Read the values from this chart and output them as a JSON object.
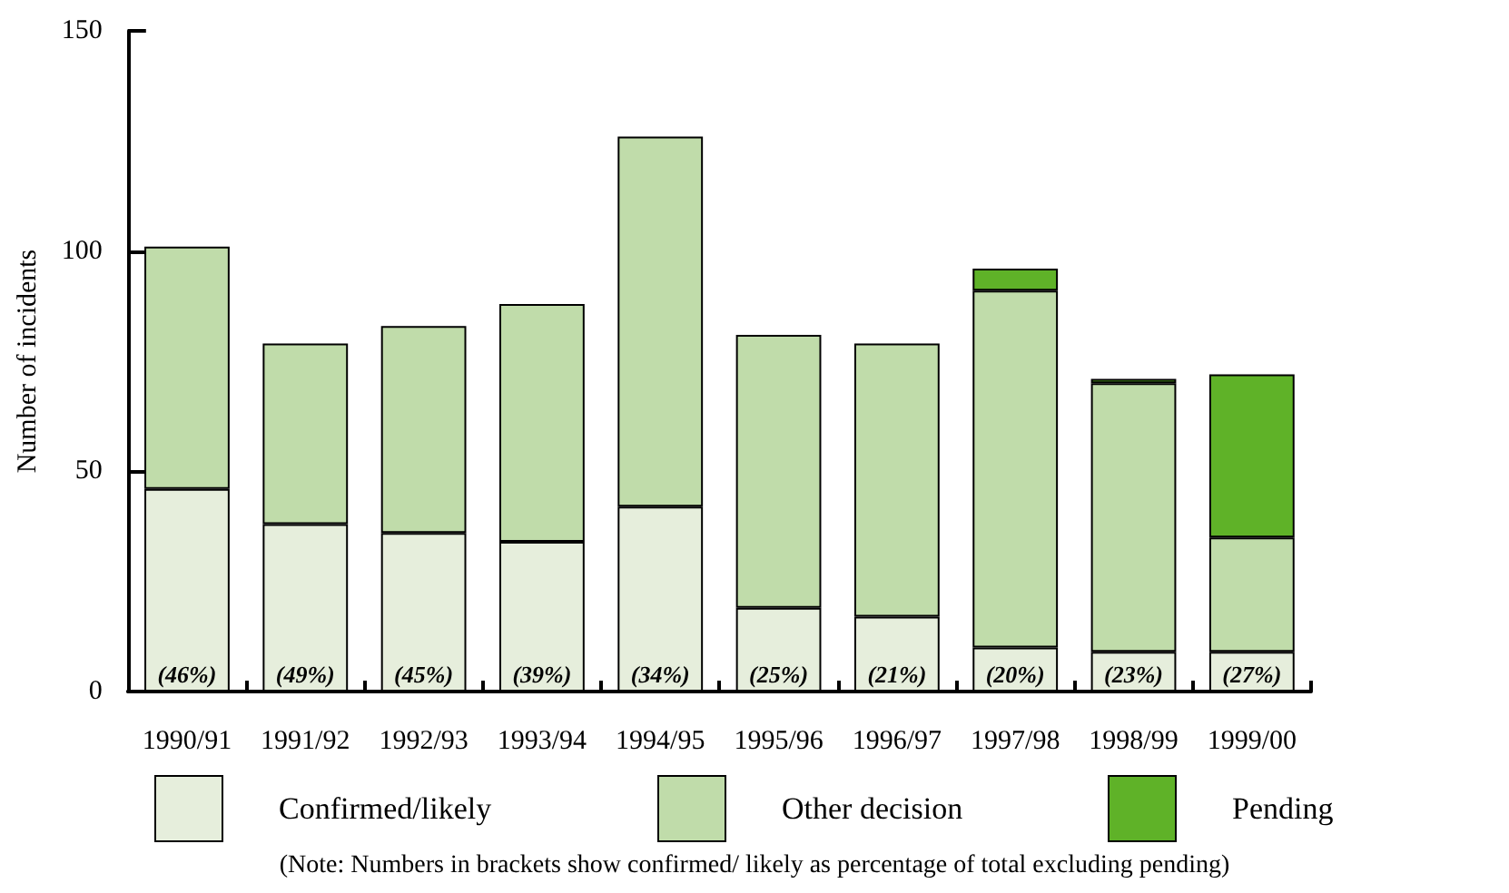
{
  "chart_data": {
    "type": "bar",
    "stacked": true,
    "ylabel": "Number of incidents",
    "categories": [
      "1990/91",
      "1991/92",
      "1992/93",
      "1993/94",
      "1994/95",
      "1995/96",
      "1996/97",
      "1997/98",
      "1998/99",
      "1999/00"
    ],
    "series": [
      {
        "name": "Confirmed/likely",
        "color": "#e6eedc",
        "values": [
          46,
          38,
          36,
          34,
          42,
          19,
          17,
          10,
          9,
          9
        ]
      },
      {
        "name": "Other decision",
        "color": "#c0dcaa",
        "values": [
          55,
          41,
          47,
          54,
          84,
          62,
          62,
          81,
          61,
          26
        ]
      },
      {
        "name": "Pending",
        "color": "#5fb228",
        "values": [
          null,
          null,
          null,
          null,
          null,
          null,
          null,
          5,
          1,
          37
        ]
      }
    ],
    "ylim": [
      0,
      150
    ],
    "yticks": [
      0,
      50,
      100,
      150
    ],
    "grid": false,
    "legend": "bottom",
    "annotations": [
      {
        "text": "(46%)",
        "x": "1990/91",
        "y": 0
      },
      {
        "text": "(49%)",
        "x": "1991/92",
        "y": 0
      },
      {
        "text": "(45%)",
        "x": "1992/93",
        "y": 0
      },
      {
        "text": "(39%)",
        "x": "1993/94",
        "y": 0
      },
      {
        "text": "(34%)",
        "x": "1994/95",
        "y": 0
      },
      {
        "text": "(25%)",
        "x": "1995/96",
        "y": 0
      },
      {
        "text": "(21%)",
        "x": "1996/97",
        "y": 0
      },
      {
        "text": "(20%)",
        "x": "1997/98",
        "y": 0
      },
      {
        "text": "(23%)",
        "x": "1998/99",
        "y": 0
      },
      {
        "text": "(27%)",
        "x": "1999/00",
        "y": 0
      },
      "(Note: Numbers in brackets show confirmed/ likely as percentage of total excluding pending)"
    ]
  }
}
